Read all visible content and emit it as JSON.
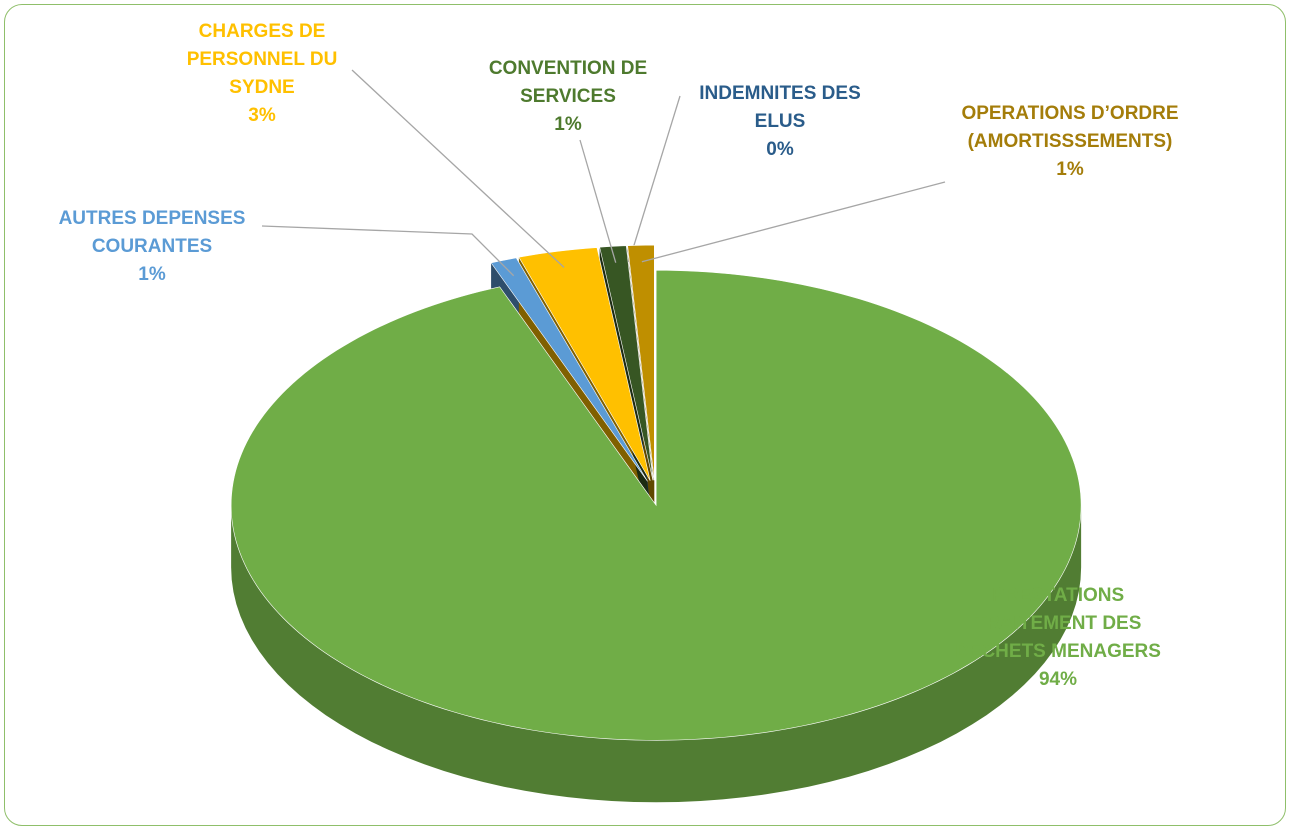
{
  "chart_data": {
    "type": "pie3d",
    "categories": [
      "PRESTATIONS TRAITEMENT DES DECHETS MENAGERS",
      "AUTRES DEPENSES COURANTES",
      "CHARGES DE PERSONNEL DU SYDNE",
      "CONVENTION DE SERVICES",
      "INDEMNITES DES ELUS",
      "OPERATIONS D’ORDRE (AMORTISSSEMENTS)"
    ],
    "values": [
      94,
      1,
      3,
      1,
      0,
      1
    ],
    "value_labels": [
      "94%",
      "1%",
      "3%",
      "1%",
      "0%",
      "1%"
    ],
    "colors": [
      "#70ad47",
      "#5b9bd5",
      "#ffc000",
      "#375623",
      "#255e91",
      "#bf8f00"
    ],
    "label_colors": [
      "#70ad47",
      "#5b9bd5",
      "#ffc000",
      "#4e7a2e",
      "#2a5c8a",
      "#a47d0a"
    ]
  }
}
